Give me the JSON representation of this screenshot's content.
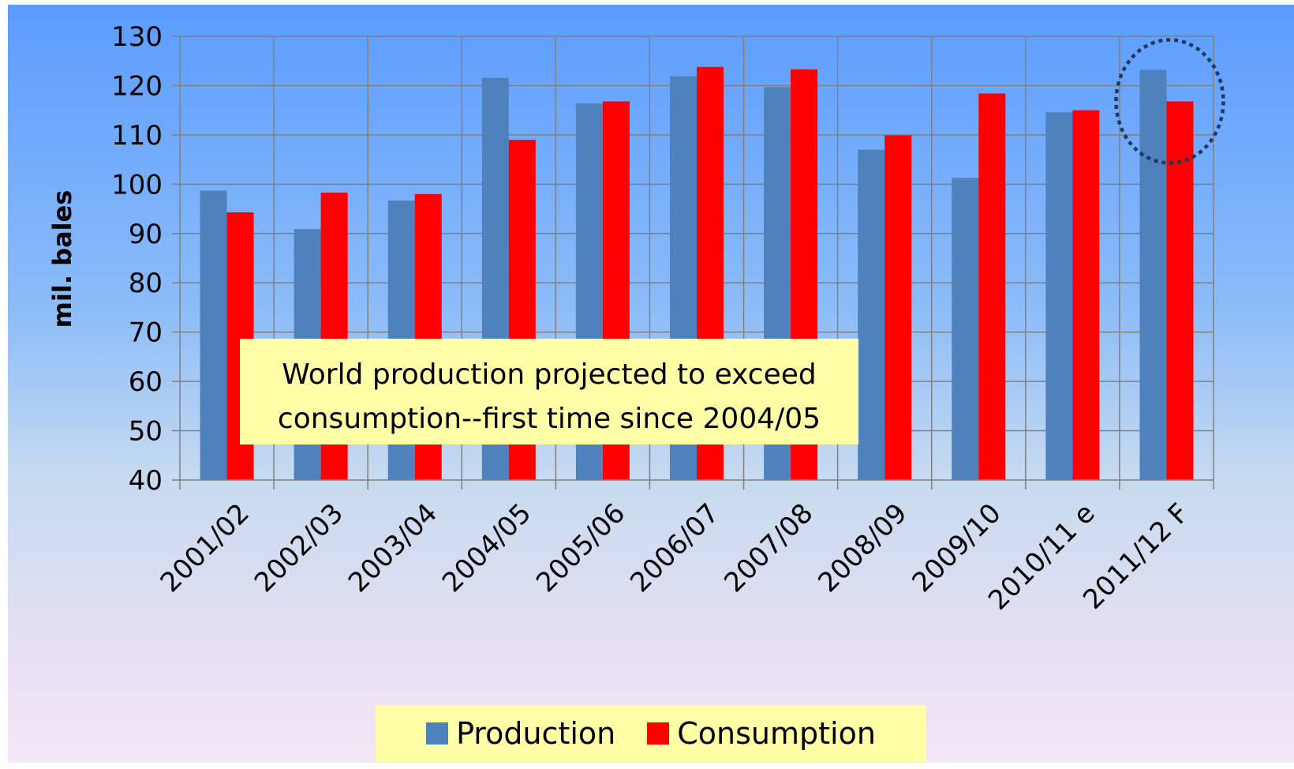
{
  "chart_data": {
    "type": "bar",
    "categories": [
      "2001/02",
      "2002/03",
      "2003/04",
      "2004/05",
      "2005/06",
      "2006/07",
      "2007/08",
      "2008/09",
      "2009/10",
      "2010/11 e",
      "2011/12 F"
    ],
    "series": [
      {
        "name": "Production",
        "color": "#4f81bd",
        "values": [
          98.7,
          90.9,
          96.7,
          121.6,
          116.4,
          121.9,
          119.7,
          107.0,
          101.3,
          114.6,
          123.2
        ]
      },
      {
        "name": "Consumption",
        "color": "#ff0000",
        "values": [
          94.3,
          98.3,
          98.0,
          109.0,
          116.8,
          123.8,
          123.3,
          109.9,
          118.4,
          115.0,
          116.8
        ]
      }
    ],
    "ylabel": "mil. bales",
    "ylim": [
      40,
      130
    ],
    "yticks": [
      40,
      50,
      60,
      70,
      80,
      90,
      100,
      110,
      120,
      130
    ],
    "grid": true,
    "legend_position": "bottom",
    "highlight_category": "2011/12 F",
    "annotation": {
      "lines": [
        "World production projected to exceed",
        "consumption--first time since 2004/05"
      ]
    }
  }
}
